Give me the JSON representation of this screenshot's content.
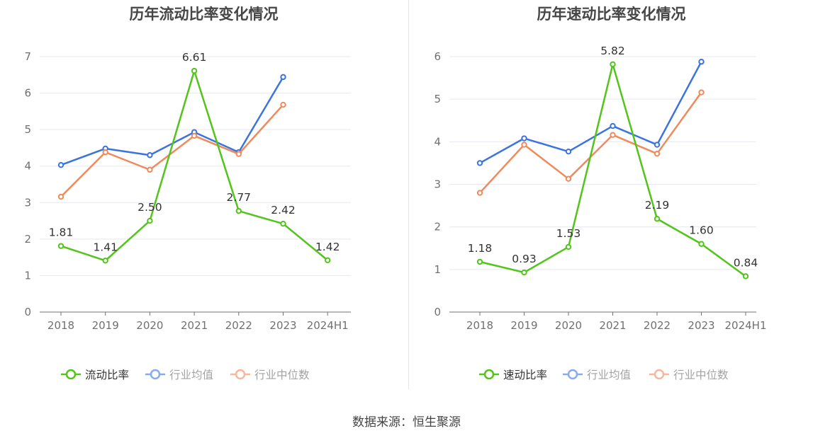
{
  "source_text": "数据来源：恒生聚源",
  "chart_data": [
    {
      "type": "line",
      "title": "历年流动比率变化情况",
      "categories": [
        "2018",
        "2019",
        "2020",
        "2021",
        "2022",
        "2023",
        "2024H1"
      ],
      "ylim": [
        0,
        7
      ],
      "yticks": [
        0,
        1,
        2,
        3,
        4,
        5,
        6,
        7
      ],
      "grid": true,
      "legend_position": "bottom",
      "series": [
        {
          "name": "流动比率",
          "color": "#52c41a",
          "values": [
            1.81,
            1.41,
            2.5,
            6.61,
            2.77,
            2.42,
            1.42
          ],
          "labels": [
            "1.81",
            "1.41",
            "2.50",
            "6.61",
            "2.77",
            "2.42",
            "1.42"
          ]
        },
        {
          "name": "行业均值",
          "color": "#3b73e0",
          "values": [
            4.03,
            4.48,
            4.3,
            4.93,
            4.38,
            6.44,
            null
          ]
        },
        {
          "name": "行业中位数",
          "color": "#f08a5d",
          "values": [
            3.16,
            4.38,
            3.9,
            4.83,
            4.33,
            5.68,
            null
          ]
        }
      ]
    },
    {
      "type": "line",
      "title": "历年速动比率变化情况",
      "categories": [
        "2018",
        "2019",
        "2020",
        "2021",
        "2022",
        "2023",
        "2024H1"
      ],
      "ylim": [
        0,
        6
      ],
      "yticks": [
        0,
        1,
        2,
        3,
        4,
        5,
        6
      ],
      "grid": true,
      "legend_position": "bottom",
      "series": [
        {
          "name": "速动比率",
          "color": "#52c41a",
          "values": [
            1.18,
            0.93,
            1.53,
            5.82,
            2.19,
            1.6,
            0.84
          ],
          "labels": [
            "1.18",
            "0.93",
            "1.53",
            "5.82",
            "2.19",
            "1.60",
            "0.84"
          ]
        },
        {
          "name": "行业均值",
          "color": "#3b73e0",
          "values": [
            3.5,
            4.08,
            3.77,
            4.37,
            3.93,
            5.88,
            null
          ]
        },
        {
          "name": "行业中位数",
          "color": "#f08a5d",
          "values": [
            2.8,
            3.93,
            3.13,
            4.16,
            3.72,
            5.16,
            null
          ]
        }
      ]
    }
  ]
}
